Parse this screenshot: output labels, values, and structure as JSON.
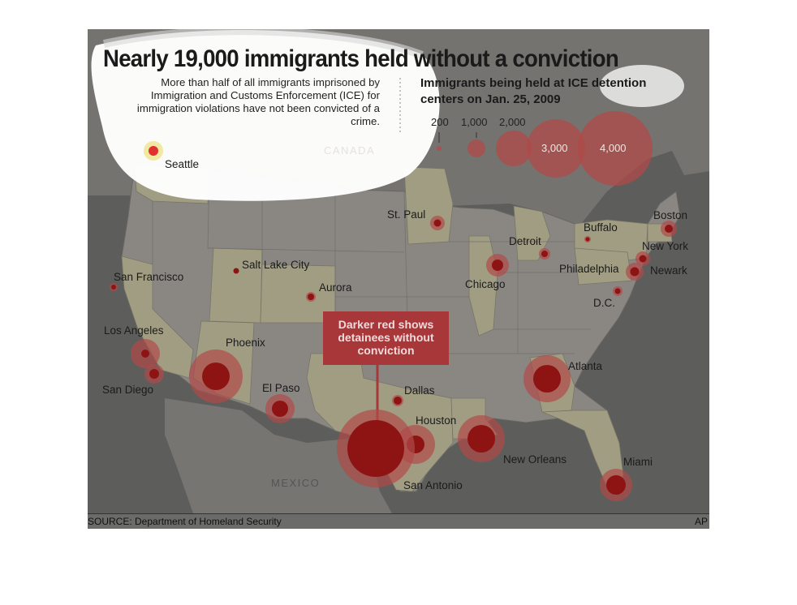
{
  "title": "Nearly 19,000 immigrants held without a conviction",
  "subtitle": "More than half of all immigrants imprisoned by Immigration and Customs Enforcement (ICE) for immigration violations have not been convicted of a crime.",
  "legend": {
    "title": "Immigrants being held at ICE detention centers on Jan. 25, 2009",
    "sizes": [
      {
        "label": "200",
        "value": 200
      },
      {
        "label": "1,000",
        "value": 1000
      },
      {
        "label": "2,000",
        "value": 2000
      },
      {
        "label": "3,000",
        "value": 3000
      },
      {
        "label": "4,000",
        "value": 4000
      }
    ]
  },
  "callout": "Darker red shows detainees without conviction",
  "countries": {
    "canada": "CANADA",
    "mexico": "MEXICO"
  },
  "source": "SOURCE: Department of Homeland Security",
  "credit": "AP",
  "colors": {
    "circle_outer": "#b04a48",
    "circle_inner": "#8e1414",
    "callout": "#a8373a",
    "state_fill": "#c9c4a0",
    "background": "#6b6b69"
  },
  "cities": [
    {
      "id": "seattle",
      "name": "Seattle"
    },
    {
      "id": "st-paul",
      "name": "St. Paul"
    },
    {
      "id": "buffalo",
      "name": "Buffalo"
    },
    {
      "id": "boston",
      "name": "Boston"
    },
    {
      "id": "detroit",
      "name": "Detroit"
    },
    {
      "id": "new-york",
      "name": "New York"
    },
    {
      "id": "salt-lake-city",
      "name": "Salt Lake City"
    },
    {
      "id": "newark",
      "name": "Newark"
    },
    {
      "id": "philadelphia",
      "name": "Philadelphia"
    },
    {
      "id": "san-francisco",
      "name": "San Francisco"
    },
    {
      "id": "chicago",
      "name": "Chicago"
    },
    {
      "id": "aurora",
      "name": "Aurora"
    },
    {
      "id": "dc",
      "name": "D.C."
    },
    {
      "id": "los-angeles",
      "name": "Los Angeles"
    },
    {
      "id": "phoenix",
      "name": "Phoenix"
    },
    {
      "id": "atlanta",
      "name": "Atlanta"
    },
    {
      "id": "san-diego",
      "name": "San Diego"
    },
    {
      "id": "el-paso",
      "name": "El Paso"
    },
    {
      "id": "dallas",
      "name": "Dallas"
    },
    {
      "id": "houston",
      "name": "Houston"
    },
    {
      "id": "new-orleans",
      "name": "New Orleans"
    },
    {
      "id": "miami",
      "name": "Miami"
    },
    {
      "id": "san-antonio",
      "name": "San Antonio"
    }
  ]
}
